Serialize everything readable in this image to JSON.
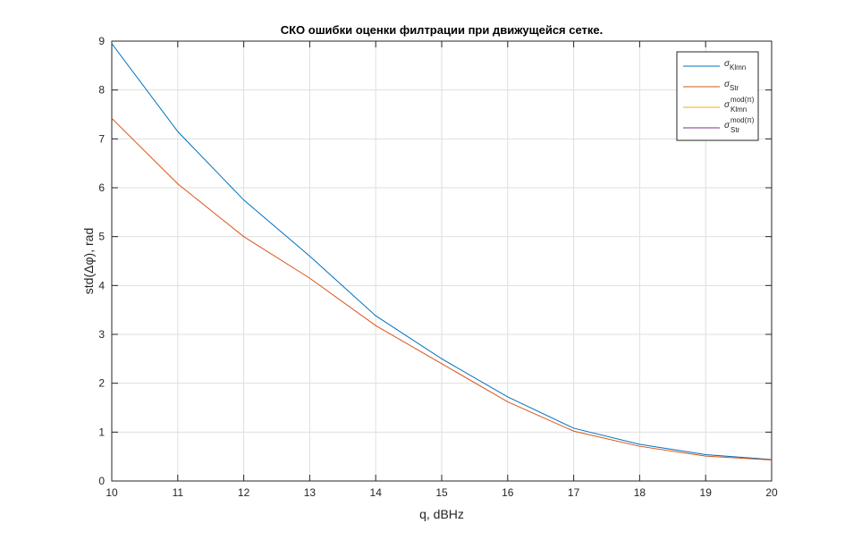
{
  "chart_data": {
    "type": "line",
    "title": "СКО ошибки оценки филтрации при движущейся сетке.",
    "xlabel": "q, dBHz",
    "ylabel": "std(Δφ), rad",
    "x": [
      10,
      11,
      12,
      13,
      14,
      15,
      16,
      17,
      18,
      19,
      20
    ],
    "series": [
      {
        "name": "σ",
        "subscript": "Klmn",
        "color": "#0072bd",
        "values": [
          8.95,
          7.15,
          5.75,
          4.6,
          3.38,
          2.5,
          1.72,
          1.08,
          0.75,
          0.54,
          0.44
        ]
      },
      {
        "name": "σ",
        "subscript": "Str",
        "color": "#d95319",
        "values": [
          7.42,
          6.08,
          5.0,
          4.15,
          3.18,
          2.4,
          1.62,
          1.02,
          0.71,
          0.51,
          0.43
        ]
      },
      {
        "name": "σ",
        "subscript": "Klmn",
        "superscript": "mod(π)",
        "color": "#edb120",
        "values": [
          null,
          null,
          null,
          null,
          null,
          null,
          null,
          null,
          null,
          null,
          null
        ]
      },
      {
        "name": "σ",
        "subscript": "Str",
        "superscript": "mod(π)",
        "color": "#7e2f8e",
        "values": [
          null,
          null,
          null,
          null,
          null,
          null,
          null,
          null,
          null,
          null,
          null
        ]
      }
    ],
    "xlim": [
      10,
      20
    ],
    "xticks": [
      10,
      11,
      12,
      13,
      14,
      15,
      16,
      17,
      18,
      19,
      20
    ],
    "ylim": [
      0,
      9
    ],
    "yticks": [
      0,
      1,
      2,
      3,
      4,
      5,
      6,
      7,
      8,
      9
    ],
    "grid": true,
    "legend": "northeast"
  }
}
